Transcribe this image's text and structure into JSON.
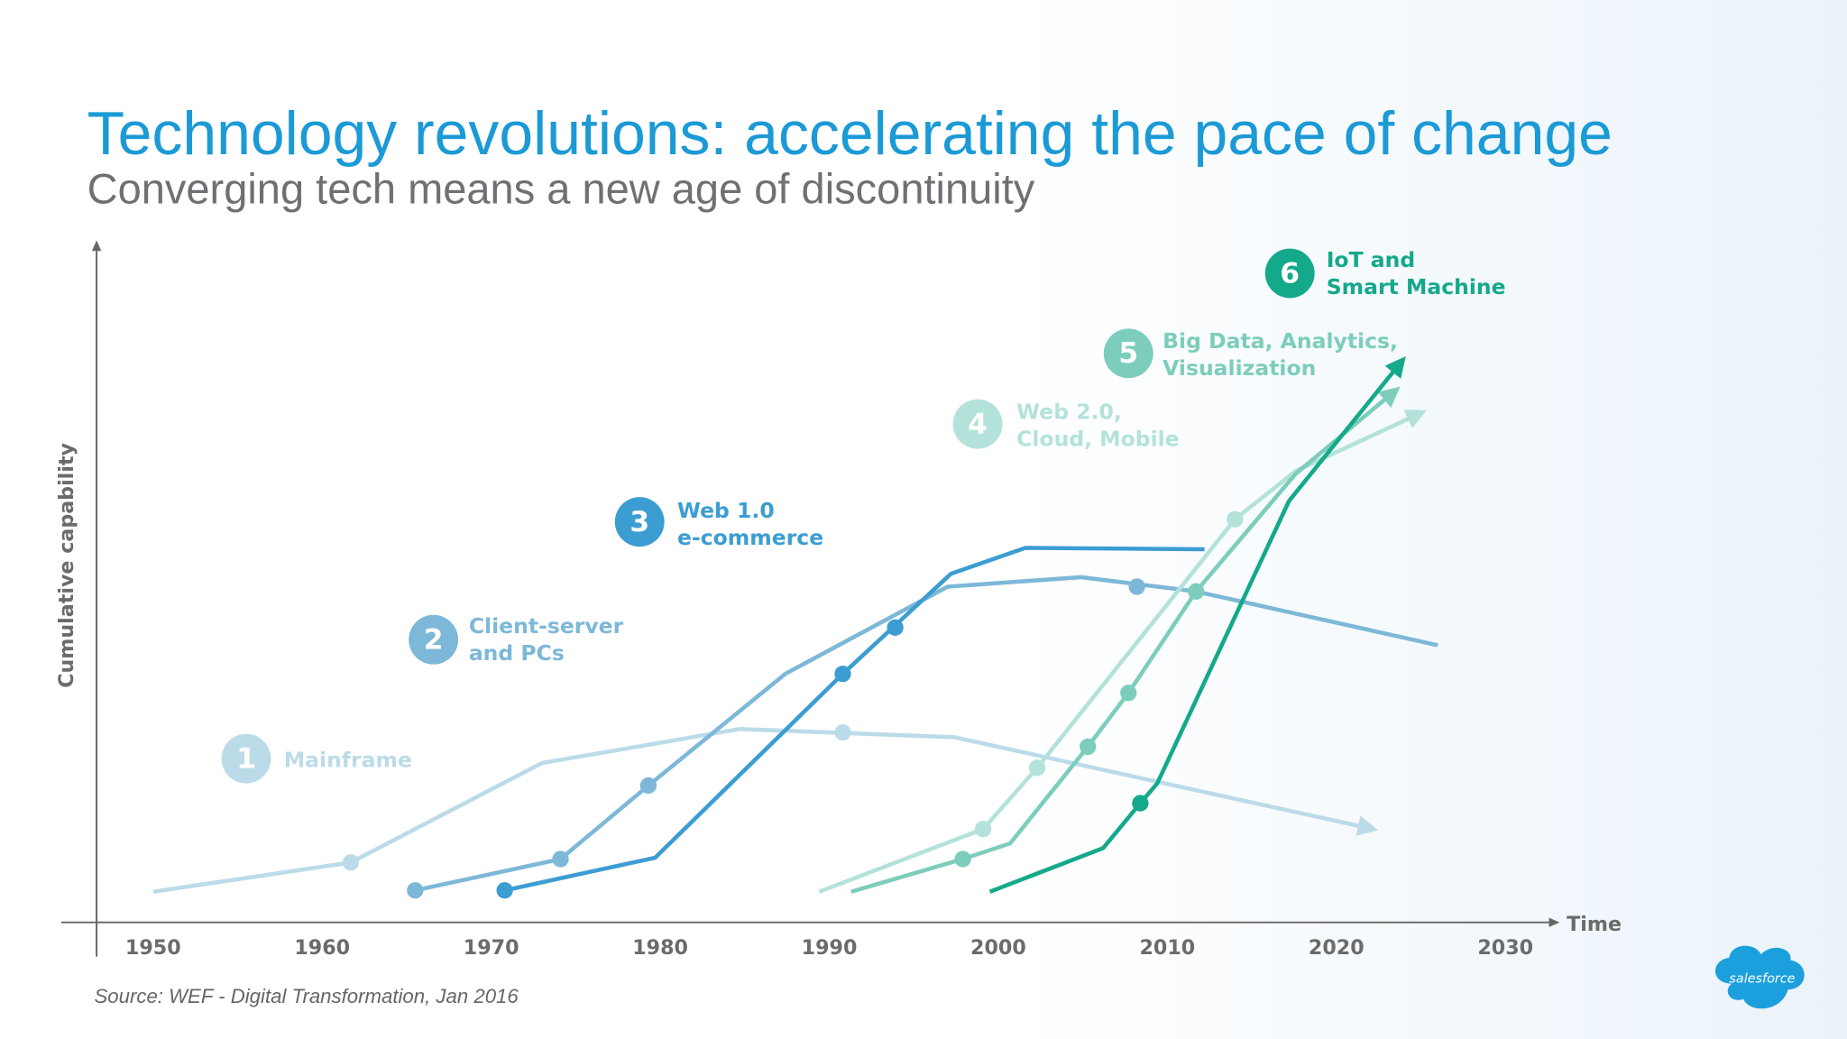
{
  "chart_data": {
    "type": "line",
    "title": "Technology revolutions: accelerating the pace of change",
    "subtitle": "Converging tech means a new age of discontinuity",
    "x_label": "Time",
    "y_label": "Cumulative capability",
    "source": "Source: WEF - Digital Transformation, Jan 2016",
    "logo": "salesforce",
    "xlim": [
      1950,
      2030
    ],
    "ylim": [
      0,
      100
    ],
    "xticks": [
      1950,
      1960,
      1970,
      1980,
      1990,
      2000,
      2010,
      2020,
      2030
    ],
    "series": [
      {
        "name": "Mainframe",
        "badge": "1",
        "label_lines": [
          "Mainframe"
        ],
        "color": "#bcdbe9",
        "arrow": true,
        "x": [
          1950,
          1961.7,
          1973.0,
          1984.7,
          1997.4,
          2022.0
        ],
        "values": [
          4.5,
          8.8,
          23.4,
          28.4,
          27.2,
          13.8
        ],
        "points": {
          "x": [
            1961.7,
            1990.8
          ],
          "values": [
            8.8,
            27.9
          ]
        }
      },
      {
        "name": "Client-server and PCs",
        "badge": "2",
        "label_lines": [
          "Client-server",
          "and PCs"
        ],
        "color": "#7db8d8",
        "arrow": false,
        "x": [
          1965.5,
          1974.1,
          1979.3,
          1987.4,
          1997.0,
          2004.9,
          2011.7,
          2026.0
        ],
        "values": [
          4.7,
          9.3,
          20.1,
          36.5,
          49.3,
          50.7,
          48.6,
          40.7
        ],
        "points": {
          "x": [
            1965.5,
            1974.1,
            1979.3,
            2008.2
          ],
          "values": [
            4.7,
            9.3,
            20.1,
            49.3
          ]
        }
      },
      {
        "name": "Web 1.0 e-commerce",
        "badge": "3",
        "label_lines": [
          "Web 1.0",
          "e-commerce"
        ],
        "color": "#3c9dd2",
        "arrow": false,
        "x": [
          1970.8,
          1979.7,
          1990.8,
          1997.2,
          2001.6,
          2012.2
        ],
        "values": [
          4.7,
          9.5,
          36.5,
          51.2,
          55.0,
          54.8
        ],
        "points": {
          "x": [
            1970.8,
            1990.8,
            1993.9
          ],
          "values": [
            4.7,
            36.5,
            43.3
          ]
        }
      },
      {
        "name": "Web 2.0, Cloud, Mobile",
        "badge": "4",
        "label_lines": [
          "Web 2.0,",
          "Cloud, Mobile"
        ],
        "color": "#b3e2da",
        "arrow": true,
        "x": [
          1989.4,
          1999.1,
          2002.3,
          2014.0,
          2017.6,
          2024.9
        ],
        "values": [
          4.5,
          13.7,
          22.7,
          59.2,
          66.3,
          74.7
        ],
        "points": {
          "x": [
            1999.1,
            2002.3,
            2014.0
          ],
          "values": [
            13.7,
            22.7,
            59.2
          ]
        }
      },
      {
        "name": "Big Data, Analytics, Visualization",
        "badge": "5",
        "label_lines": [
          "Big Data, Analytics,",
          "Visualization"
        ],
        "color": "#7ccdbc",
        "arrow": true,
        "x": [
          1991.3,
          1997.9,
          2000.7,
          2005.3,
          2007.7,
          2011.7,
          2017.6,
          2023.4
        ],
        "values": [
          4.5,
          9.3,
          11.6,
          25.8,
          33.7,
          48.6,
          65.9,
          77.9
        ],
        "points": {
          "x": [
            1997.9,
            2005.3,
            2007.7,
            2011.7
          ],
          "values": [
            9.3,
            25.8,
            33.7,
            48.6
          ]
        }
      },
      {
        "name": "IoT and Smart Machine",
        "badge": "6",
        "label_lines": [
          "IoT and",
          "Smart Machine"
        ],
        "color": "#14a98b",
        "arrow": true,
        "x": [
          1999.5,
          2006.2,
          2008.4,
          2009.4,
          2017.2,
          2023.8
        ],
        "values": [
          4.5,
          10.9,
          17.5,
          20.4,
          61.9,
          82.2
        ],
        "points": {
          "x": [
            2008.4
          ],
          "values": [
            17.5
          ]
        }
      }
    ]
  }
}
